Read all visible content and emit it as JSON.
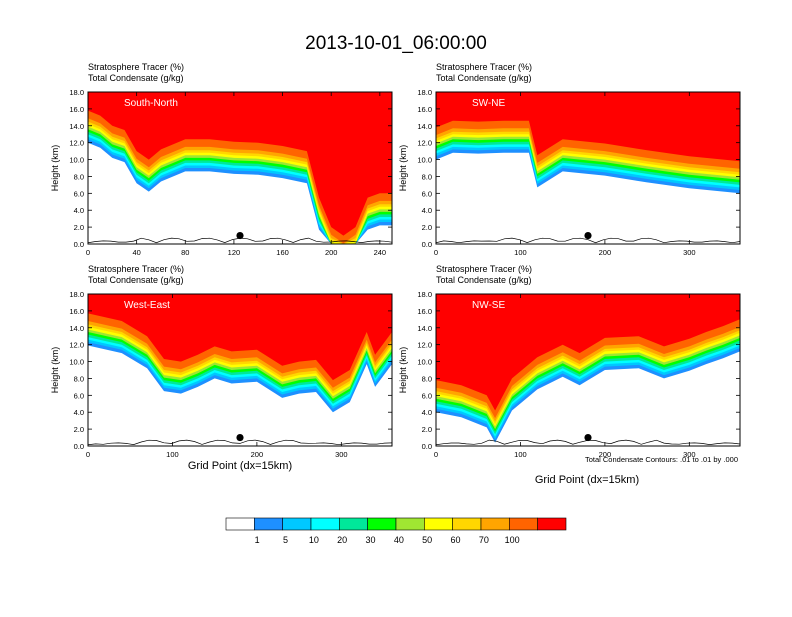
{
  "page_title": "2013-10-01_06:00:00",
  "ylabel": "Height (km)",
  "xlabel": "Grid Point (dx=15km)",
  "contour_note": "Total Condensate Contours: .01 to .01 by .000",
  "field_labels": [
    "Stratosphere Tracer   (%)",
    "Total Condensate   (g/kg)"
  ],
  "colorbar": {
    "levels": [
      "1",
      "5",
      "10",
      "20",
      "30",
      "40",
      "50",
      "60",
      "70",
      "100"
    ],
    "colors": [
      "#ffffff",
      "#1e90ff",
      "#00c8ff",
      "#00ffff",
      "#00e89a",
      "#00ff00",
      "#a0e632",
      "#ffff00",
      "#ffd700",
      "#ffa500",
      "#ff6400",
      "#ff0000"
    ]
  },
  "chart_data": [
    {
      "type": "heatmap",
      "panel_label": "South-North",
      "xlim": [
        0,
        250
      ],
      "xticks": [
        "0",
        "40",
        "80",
        "120",
        "160",
        "200",
        "240"
      ],
      "ylim": [
        0,
        18
      ],
      "yticks": [
        "0.0",
        "2.0",
        "4.0",
        "6.0",
        "8.0",
        "10.0",
        "12.0",
        "14.0",
        "16.0",
        "18.0"
      ],
      "marker_x": 125,
      "tracer_top_km": [
        [
          0,
          15.8
        ],
        [
          10,
          15.2
        ],
        [
          20,
          14.0
        ],
        [
          30,
          13.5
        ],
        [
          40,
          11.0
        ],
        [
          50,
          10.0
        ],
        [
          60,
          11.2
        ],
        [
          80,
          12.4
        ],
        [
          100,
          12.4
        ],
        [
          120,
          12.1
        ],
        [
          140,
          12.0
        ],
        [
          160,
          11.6
        ],
        [
          180,
          11.0
        ],
        [
          190,
          5.5
        ],
        [
          200,
          2.0
        ],
        [
          210,
          1.0
        ],
        [
          220,
          2.0
        ],
        [
          230,
          5.5
        ],
        [
          240,
          6.0
        ],
        [
          250,
          6.0
        ]
      ]
    },
    {
      "type": "heatmap",
      "panel_label": "SW-NE",
      "xlim": [
        0,
        360
      ],
      "xticks": [
        "0",
        "100",
        "200",
        "300"
      ],
      "ylim": [
        0,
        18
      ],
      "yticks": [
        "0.0",
        "2.0",
        "4.0",
        "6.0",
        "8.0",
        "10.0",
        "12.0",
        "14.0",
        "16.0",
        "18.0"
      ],
      "marker_x": 180,
      "tracer_top_km": [
        [
          0,
          13.8
        ],
        [
          20,
          14.6
        ],
        [
          50,
          14.5
        ],
        [
          80,
          14.6
        ],
        [
          110,
          14.6
        ],
        [
          120,
          10.5
        ],
        [
          150,
          12.4
        ],
        [
          200,
          11.9
        ],
        [
          250,
          11.1
        ],
        [
          300,
          10.4
        ],
        [
          360,
          9.8
        ]
      ]
    },
    {
      "type": "heatmap",
      "panel_label": "West-East",
      "xlim": [
        0,
        360
      ],
      "xticks": [
        "0",
        "100",
        "200",
        "300"
      ],
      "ylim": [
        0,
        18
      ],
      "yticks": [
        "0.0",
        "2.0",
        "4.0",
        "6.0",
        "8.0",
        "10.0",
        "12.0",
        "14.0",
        "16.0",
        "18.0"
      ],
      "marker_x": 180,
      "tracer_top_km": [
        [
          0,
          15.7
        ],
        [
          40,
          14.8
        ],
        [
          70,
          13.0
        ],
        [
          90,
          10.3
        ],
        [
          110,
          10.0
        ],
        [
          130,
          10.8
        ],
        [
          150,
          11.8
        ],
        [
          170,
          11.2
        ],
        [
          200,
          11.4
        ],
        [
          230,
          9.5
        ],
        [
          250,
          10.0
        ],
        [
          270,
          10.2
        ],
        [
          290,
          7.8
        ],
        [
          310,
          9.0
        ],
        [
          330,
          13.5
        ],
        [
          340,
          10.8
        ],
        [
          360,
          13.5
        ]
      ]
    },
    {
      "type": "heatmap",
      "panel_label": "NW-SE",
      "xlim": [
        0,
        360
      ],
      "xticks": [
        "0",
        "100",
        "200",
        "300"
      ],
      "ylim": [
        0,
        18
      ],
      "yticks": [
        "0.0",
        "2.0",
        "4.0",
        "6.0",
        "8.0",
        "10.0",
        "12.0",
        "14.0",
        "16.0",
        "18.0"
      ],
      "marker_x": 180,
      "tracer_top_km": [
        [
          0,
          7.8
        ],
        [
          30,
          7.2
        ],
        [
          60,
          6.0
        ],
        [
          70,
          4.2
        ],
        [
          90,
          8.0
        ],
        [
          120,
          10.5
        ],
        [
          150,
          12.0
        ],
        [
          170,
          11.0
        ],
        [
          200,
          12.8
        ],
        [
          240,
          13.0
        ],
        [
          270,
          11.8
        ],
        [
          300,
          12.7
        ],
        [
          320,
          13.5
        ],
        [
          340,
          14.2
        ],
        [
          360,
          15.0
        ]
      ]
    }
  ]
}
